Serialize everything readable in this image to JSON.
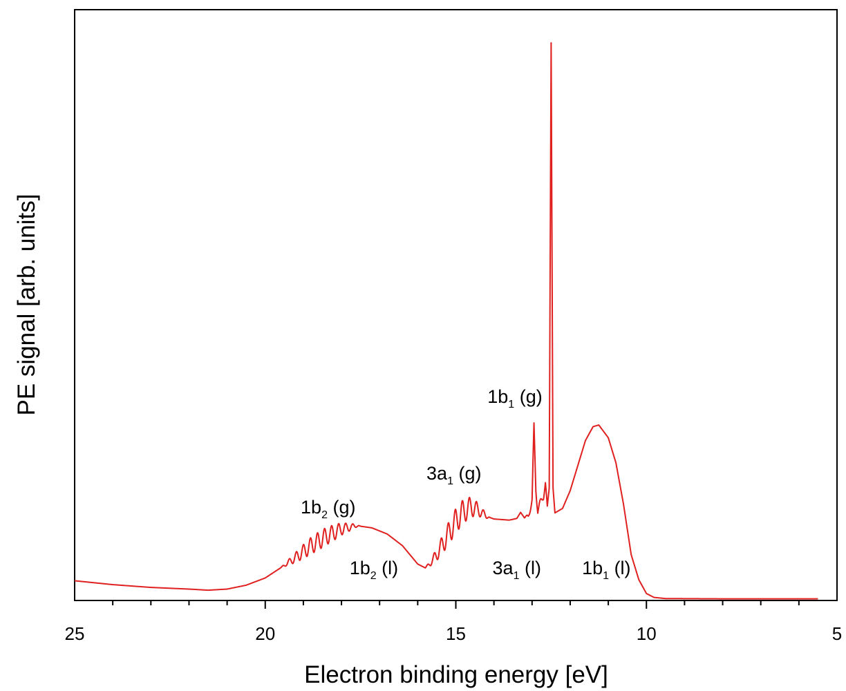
{
  "chart_data": {
    "type": "line",
    "title": "",
    "xlabel": "Electron binding energy [eV]",
    "ylabel": "PE signal [arb. units]",
    "xlim": [
      25,
      5
    ],
    "x_reversed": true,
    "ylim": [
      0,
      100
    ],
    "grid": false,
    "legend": "none",
    "x_ticks": [
      25,
      20,
      15,
      10,
      5
    ],
    "x_tick_labels": [
      "25",
      "20",
      "15",
      "10",
      "5"
    ],
    "series": [
      {
        "color": "#e01f1f",
        "points": [
          [
            25.0,
            3.3
          ],
          [
            24.0,
            2.6
          ],
          [
            23.0,
            2.1
          ],
          [
            22.0,
            1.8
          ],
          [
            21.5,
            1.6
          ],
          [
            21.0,
            1.8
          ],
          [
            20.5,
            2.5
          ],
          [
            20.0,
            3.8
          ],
          [
            19.6,
            5.6
          ],
          [
            19.2,
            7.5
          ],
          [
            18.8,
            9.6
          ],
          [
            18.4,
            11.3
          ],
          [
            18.0,
            12.6
          ],
          [
            17.6,
            13.2
          ],
          [
            17.2,
            12.8
          ],
          [
            16.8,
            11.7
          ],
          [
            16.4,
            9.6
          ],
          [
            16.0,
            6.3
          ],
          [
            15.8,
            5.6
          ],
          [
            15.6,
            7.0
          ],
          [
            15.4,
            9.2
          ],
          [
            15.2,
            11.7
          ],
          [
            15.0,
            14.1
          ],
          [
            14.8,
            15.8
          ],
          [
            14.6,
            16.6
          ],
          [
            14.4,
            16.0
          ],
          [
            14.2,
            14.9
          ],
          [
            14.0,
            14.4
          ],
          [
            13.6,
            14.2
          ],
          [
            13.4,
            14.5
          ],
          [
            13.3,
            15.6
          ],
          [
            13.2,
            14.6
          ],
          [
            13.1,
            15.0
          ],
          [
            13.0,
            17.5
          ],
          [
            12.95,
            31.0
          ],
          [
            12.9,
            20.0
          ],
          [
            12.85,
            16.0
          ],
          [
            12.7,
            18.5
          ],
          [
            12.65,
            21.0
          ],
          [
            12.6,
            16.5
          ],
          [
            12.55,
            20.0
          ],
          [
            12.5,
            100.0
          ],
          [
            12.45,
            20.0
          ],
          [
            12.4,
            15.5
          ],
          [
            12.2,
            16.3
          ],
          [
            12.0,
            19.5
          ],
          [
            11.8,
            24.0
          ],
          [
            11.6,
            28.5
          ],
          [
            11.4,
            31.0
          ],
          [
            11.25,
            31.3
          ],
          [
            11.0,
            29.0
          ],
          [
            10.8,
            24.5
          ],
          [
            10.6,
            17.0
          ],
          [
            10.4,
            8.0
          ],
          [
            10.2,
            3.5
          ],
          [
            10.0,
            1.0
          ],
          [
            9.8,
            0.3
          ],
          [
            9.5,
            0.1
          ],
          [
            8.0,
            0.05
          ],
          [
            5.5,
            0.05
          ]
        ],
        "vibrational_structure": [
          {
            "x_range": [
              19.6,
              17.5
            ],
            "amplitude": 1.6
          },
          {
            "x_range": [
              15.8,
              14.1
            ],
            "amplitude": 2.2
          },
          {
            "x_range": [
              13.2,
              12.55
            ],
            "amplitude": 0.9
          }
        ]
      }
    ],
    "annotations": [
      {
        "main": "1b",
        "sub": "2",
        "suffix": " (g)",
        "x": 18.35,
        "y": 15.4
      },
      {
        "main": "1b",
        "sub": "2",
        "suffix": " (l)",
        "x": 17.15,
        "y": 4.5
      },
      {
        "main": "3a",
        "sub": "1",
        "suffix": " (g)",
        "x": 15.05,
        "y": 21.5
      },
      {
        "main": "3a",
        "sub": "1",
        "suffix": " (l)",
        "x": 13.4,
        "y": 4.5
      },
      {
        "main": "1b",
        "sub": "1",
        "suffix": " (g)",
        "x": 13.45,
        "y": 35.3
      },
      {
        "main": "1b",
        "sub": "1",
        "suffix": " (l)",
        "x": 11.05,
        "y": 4.5
      }
    ]
  }
}
